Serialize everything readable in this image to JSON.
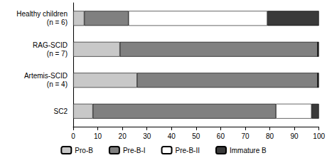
{
  "chart_data": {
    "type": "bar",
    "orientation": "horizontal",
    "stacked": true,
    "grid": false,
    "legend": "bottom",
    "categories": [
      "Healthy children\n(n = 6)",
      "RAG-SCID\n(n = 7)",
      "Artemis-SCID\n(n = 4)",
      "SC2"
    ],
    "series": [
      {
        "name": "Pro-B",
        "color": "#c8c8c8",
        "values": [
          4.5,
          19,
          26,
          8
        ]
      },
      {
        "name": "Pre-B-I",
        "color": "#808080",
        "values": [
          18,
          80.5,
          73.5,
          74.5
        ]
      },
      {
        "name": "Pre-B-II",
        "color": "#ffffff",
        "values": [
          56.5,
          0,
          0,
          14.5
        ]
      },
      {
        "name": "Immature B",
        "color": "#3a3a3a",
        "values": [
          21,
          0.5,
          0.5,
          3
        ]
      }
    ],
    "xlim": [
      0,
      100
    ],
    "xticks": [
      0,
      10,
      20,
      30,
      40,
      50,
      60,
      70,
      80,
      90,
      100
    ]
  }
}
